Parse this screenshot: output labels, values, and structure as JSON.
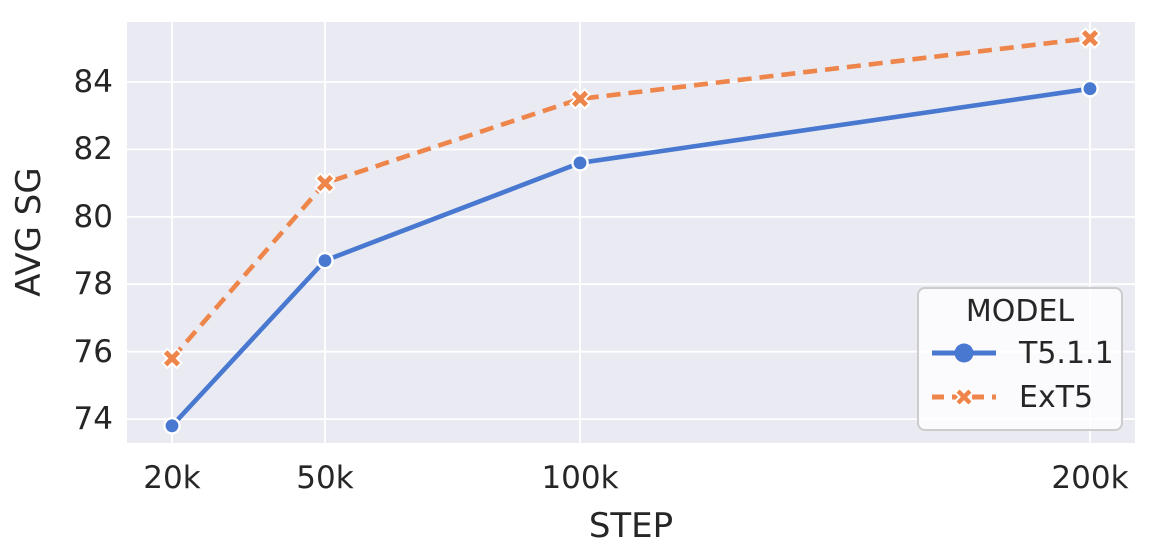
{
  "chart_data": {
    "type": "line",
    "x": [
      20000,
      50000,
      100000,
      200000
    ],
    "x_tick_labels": [
      "20k",
      "50k",
      "100k",
      "200k"
    ],
    "y_ticks": [
      74,
      76,
      78,
      80,
      82,
      84
    ],
    "series": [
      {
        "name": "T5.1.1",
        "values": [
          73.8,
          78.7,
          81.6,
          83.8
        ],
        "color": "#4878d0",
        "line_style": "solid",
        "marker": "circle"
      },
      {
        "name": "ExT5",
        "values": [
          75.8,
          81.0,
          83.5,
          85.3
        ],
        "color": "#ee854a",
        "line_style": "dashed",
        "marker": "x"
      }
    ],
    "xlabel": "STEP",
    "ylabel": "AVG SG",
    "xlim": [
      11176,
      208824
    ],
    "ylim": [
      73.29,
      85.78
    ],
    "grid": true,
    "legend": {
      "title": "MODEL",
      "position": "lower right"
    }
  },
  "colors": {
    "plot_background": "#eaeaf2",
    "grid_line": "#ffffff",
    "text": "#262626",
    "marker_edge": "#ffffff",
    "legend_border": "#cccccc"
  }
}
